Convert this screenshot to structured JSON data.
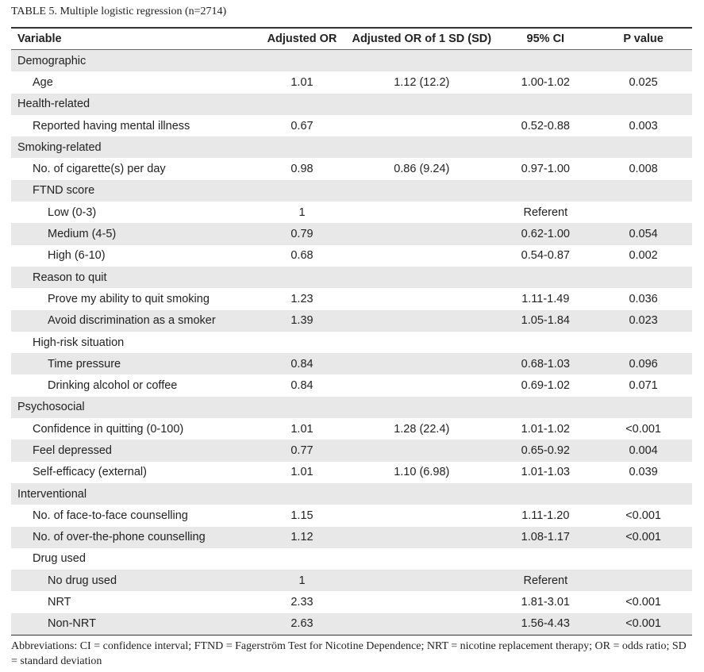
{
  "caption": "TABLE 5. Multiple logistic regression (n=2714)",
  "headers": [
    "Variable",
    "Adjusted OR",
    "Adjusted OR of 1 SD (SD)",
    "95% CI",
    "P value"
  ],
  "rows": [
    {
      "label": "Demographic",
      "or": "",
      "or_sd": "",
      "ci": "",
      "p": ""
    },
    {
      "label": "Age",
      "or": "1.01",
      "or_sd": "1.12 (12.2)",
      "ci": "1.00-1.02",
      "p": "0.025"
    },
    {
      "label": "Health-related",
      "or": "",
      "or_sd": "",
      "ci": "",
      "p": ""
    },
    {
      "label": "Reported having mental illness",
      "or": "0.67",
      "or_sd": "",
      "ci": "0.52-0.88",
      "p": "0.003"
    },
    {
      "label": "Smoking-related",
      "or": "",
      "or_sd": "",
      "ci": "",
      "p": ""
    },
    {
      "label": "No. of cigarette(s) per day",
      "or": "0.98",
      "or_sd": "0.86 (9.24)",
      "ci": "0.97-1.00",
      "p": "0.008"
    },
    {
      "label": "FTND score",
      "or": "",
      "or_sd": "",
      "ci": "",
      "p": ""
    },
    {
      "label": "Low (0-3)",
      "or": "1",
      "or_sd": "",
      "ci": "Referent",
      "p": ""
    },
    {
      "label": "Medium (4-5)",
      "or": "0.79",
      "or_sd": "",
      "ci": "0.62-1.00",
      "p": "0.054"
    },
    {
      "label": "High (6-10)",
      "or": "0.68",
      "or_sd": "",
      "ci": "0.54-0.87",
      "p": "0.002"
    },
    {
      "label": "Reason to quit",
      "or": "",
      "or_sd": "",
      "ci": "",
      "p": ""
    },
    {
      "label": "Prove my ability to quit smoking",
      "or": "1.23",
      "or_sd": "",
      "ci": "1.11-1.49",
      "p": "0.036"
    },
    {
      "label": "Avoid discrimination as a smoker",
      "or": "1.39",
      "or_sd": "",
      "ci": "1.05-1.84",
      "p": "0.023"
    },
    {
      "label": "High-risk situation",
      "or": "",
      "or_sd": "",
      "ci": "",
      "p": ""
    },
    {
      "label": "Time pressure",
      "or": "0.84",
      "or_sd": "",
      "ci": "0.68-1.03",
      "p": "0.096"
    },
    {
      "label": "Drinking alcohol or coffee",
      "or": "0.84",
      "or_sd": "",
      "ci": "0.69-1.02",
      "p": "0.071"
    },
    {
      "label": "Psychosocial",
      "or": "",
      "or_sd": "",
      "ci": "",
      "p": ""
    },
    {
      "label": "Confidence in quitting (0-100)",
      "or": "1.01",
      "or_sd": "1.28 (22.4)",
      "ci": "1.01-1.02",
      "p": "<0.001"
    },
    {
      "label": "Feel depressed",
      "or": "0.77",
      "or_sd": "",
      "ci": "0.65-0.92",
      "p": "0.004"
    },
    {
      "label": "Self-efficacy (external)",
      "or": "1.01",
      "or_sd": "1.10 (6.98)",
      "ci": "1.01-1.03",
      "p": "0.039"
    },
    {
      "label": "Interventional",
      "or": "",
      "or_sd": "",
      "ci": "",
      "p": ""
    },
    {
      "label": "No. of face-to-face counselling",
      "or": "1.15",
      "or_sd": "",
      "ci": "1.11-1.20",
      "p": "<0.001"
    },
    {
      "label": "No. of over-the-phone counselling",
      "or": "1.12",
      "or_sd": "",
      "ci": "1.08-1.17",
      "p": "<0.001"
    },
    {
      "label": "Drug used",
      "or": "",
      "or_sd": "",
      "ci": "",
      "p": ""
    },
    {
      "label": "No drug used",
      "or": "1",
      "or_sd": "",
      "ci": "Referent",
      "p": ""
    },
    {
      "label": "NRT",
      "or": "2.33",
      "or_sd": "",
      "ci": "1.81-3.01",
      "p": "<0.001"
    },
    {
      "label": "Non-NRT",
      "or": "2.63",
      "or_sd": "",
      "ci": "1.56-4.43",
      "p": "<0.001"
    }
  ],
  "footnote": "Abbreviations: CI = confidence interval; FTND =  Fagerström Test for Nicotine Dependence; NRT = nicotine replacement therapy; OR = odds ratio; SD = standard deviation"
}
